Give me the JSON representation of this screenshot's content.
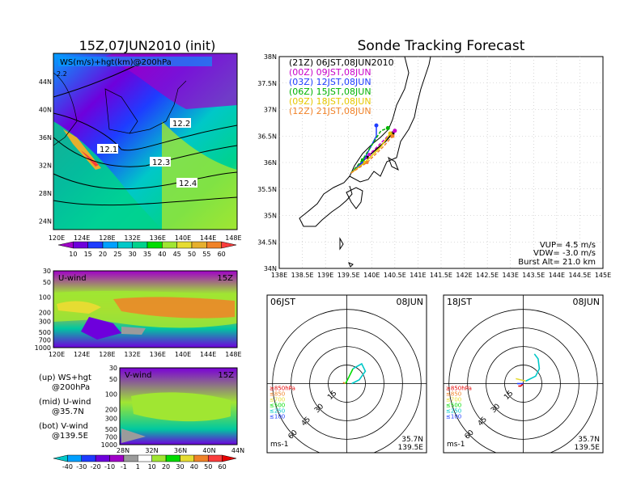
{
  "left": {
    "title": "15Z,07JUN2010 (init)",
    "map_label": "WS(m/s)+hgt(km)@200hPa",
    "map_corner_value": "2.2",
    "map_hgt_labels": [
      "12.1",
      "12.2",
      "12.3",
      "12.4"
    ],
    "map_lat_ticks": [
      "44N",
      "40N",
      "36N",
      "32N",
      "28N",
      "24N"
    ],
    "map_lon_ticks": [
      "120E",
      "124E",
      "128E",
      "132E",
      "136E",
      "140E",
      "144E",
      "148E"
    ],
    "ws_colorbar": [
      "10",
      "15",
      "20",
      "25",
      "30",
      "35",
      "40",
      "45",
      "50",
      "55",
      "60"
    ],
    "ws_colors": [
      "#a000c8",
      "#6e00dc",
      "#1e3cff",
      "#00a0ff",
      "#00c8c8",
      "#00d28c",
      "#00dc00",
      "#a0e632",
      "#e6dc32",
      "#e6af2d",
      "#f08228",
      "#fa3c3c"
    ],
    "u_panel_label": "U-wind",
    "u_panel_time": "15Z",
    "u_y_ticks": [
      "30",
      "50",
      "100",
      "200",
      "300",
      "500",
      "700",
      "1000"
    ],
    "u_x_ticks": [
      "120E",
      "124E",
      "128E",
      "132E",
      "136E",
      "140E",
      "144E",
      "148E"
    ],
    "v_panel_label": "V-wind",
    "v_panel_time": "15Z",
    "v_y_ticks": [
      "30",
      "50",
      "100",
      "200",
      "300",
      "500",
      "700",
      "1000"
    ],
    "v_x_ticks": [
      "28N",
      "32N",
      "36N",
      "40N",
      "44N"
    ],
    "legend_lines": [
      "(up) WS+hgt",
      "@200hPa",
      "(mid) U-wind",
      "@35.7N",
      "(bot) V-wind",
      "@139.5E"
    ],
    "uv_colorbar": [
      "-40",
      "-30",
      "-20",
      "-10",
      "-1",
      "1",
      "10",
      "20",
      "30",
      "40",
      "50",
      "60"
    ],
    "uv_colors": [
      "#00c8c8",
      "#00a0ff",
      "#1e3cff",
      "#6e00dc",
      "#a000c8",
      "#9b9b9b",
      "#ffffff",
      "#a0e632",
      "#00dc00",
      "#e6dc32",
      "#f08228",
      "#fa3c3c",
      "#e60000"
    ]
  },
  "right": {
    "title": "Sonde Tracking Forecast",
    "legend": [
      {
        "label": "(21Z) 06JST,08JUN2010",
        "color": "#000000"
      },
      {
        "label": "(00Z) 09JST,08JUN",
        "color": "#c800c8"
      },
      {
        "label": "(03Z) 12JST,08JUN",
        "color": "#1e3cff"
      },
      {
        "label": "(06Z) 15JST,08JUN",
        "color": "#00b400"
      },
      {
        "label": "(09Z) 18JST,08JUN",
        "color": "#e6c800"
      },
      {
        "label": "(12Z) 21JST,08JUN",
        "color": "#f08228"
      }
    ],
    "lat_ticks": [
      "38N",
      "37.5N",
      "37N",
      "36.5N",
      "36N",
      "35.5N",
      "35N",
      "34.5N",
      "34N"
    ],
    "lon_ticks": [
      "138E",
      "138.5E",
      "139E",
      "139.5E",
      "140E",
      "140.5E",
      "141E",
      "141.5E",
      "142E",
      "142.5E",
      "143E",
      "143.5E",
      "144E",
      "144.5E",
      "145E"
    ],
    "info": [
      "VUP= 4.5 m/s",
      "VDW= -3.0 m/s",
      "Burst Alt= 21.0 km"
    ]
  },
  "hodographs": [
    {
      "time": "06JST",
      "date": "08JUN",
      "ring_labels": [
        "15",
        "30",
        "45",
        "60"
      ],
      "levels": [
        "≥850hPa",
        "≤850",
        "≤700",
        "≤500",
        "≤250",
        "≤100"
      ],
      "level_colors": [
        "#e60000",
        "#f08228",
        "#e6dc32",
        "#00dc00",
        "#00c8c8",
        "#1e3cff"
      ],
      "unit": "ms-1",
      "lat": "35.7N",
      "lon": "139.5E"
    },
    {
      "time": "18JST",
      "date": "08JUN",
      "ring_labels": [
        "15",
        "30",
        "45",
        "60"
      ],
      "levels": [
        "≥850hPa",
        "≤850",
        "≤700",
        "≤500",
        "≤250",
        "≤100"
      ],
      "level_colors": [
        "#e60000",
        "#f08228",
        "#e6dc32",
        "#00dc00",
        "#00c8c8",
        "#1e3cff"
      ],
      "unit": "ms-1",
      "lat": "35.7N",
      "lon": "139.5E"
    }
  ],
  "chart_data": [
    {
      "type": "heatmap",
      "title": "15Z,07JUN2010 (init)",
      "label": "WS(m/s)+hgt(km)@200hPa",
      "xlim": [
        120,
        149
      ],
      "ylim": [
        22,
        48
      ],
      "contours": [
        12.1,
        12.2,
        12.3,
        12.4
      ],
      "colorbar": [
        10,
        15,
        20,
        25,
        30,
        35,
        40,
        45,
        50,
        55,
        60
      ]
    },
    {
      "type": "heatmap",
      "label": "U-wind",
      "time": "15Z",
      "xlim": [
        120,
        149
      ],
      "ylim": [
        1000,
        30
      ]
    },
    {
      "type": "heatmap",
      "label": "V-wind",
      "time": "15Z",
      "xlim": [
        28,
        44
      ],
      "ylim": [
        1000,
        30
      ]
    },
    {
      "type": "line",
      "title": "Sonde Tracking Forecast",
      "xlim": [
        138,
        145
      ],
      "ylim": [
        34,
        38
      ],
      "series": [
        {
          "name": "(21Z) 06JST,08JUN2010",
          "points": [
            [
              139.55,
              35.8
            ],
            [
              139.9,
              36.1
            ],
            [
              140.3,
              36.4
            ],
            [
              140.45,
              36.55
            ]
          ]
        },
        {
          "name": "(00Z) 09JST,08JUN",
          "points": [
            [
              139.55,
              35.8
            ],
            [
              139.95,
              36.15
            ],
            [
              140.35,
              36.5
            ],
            [
              140.5,
              36.6
            ]
          ]
        },
        {
          "name": "(03Z) 12JST,08JUN",
          "points": [
            [
              139.55,
              35.8
            ],
            [
              139.8,
              36.0
            ],
            [
              140.1,
              36.5
            ],
            [
              140.1,
              36.7
            ]
          ]
        },
        {
          "name": "(06Z) 15JST,08JUN",
          "points": [
            [
              139.55,
              35.8
            ],
            [
              139.8,
              36.05
            ],
            [
              140.2,
              36.6
            ],
            [
              140.35,
              36.65
            ]
          ]
        },
        {
          "name": "(09Z) 18JST,08JUN",
          "points": [
            [
              139.55,
              35.8
            ],
            [
              139.85,
              36.0
            ],
            [
              140.2,
              36.3
            ],
            [
              140.4,
              36.55
            ]
          ]
        },
        {
          "name": "(12Z) 21JST,08JUN",
          "points": [
            [
              139.55,
              35.8
            ],
            [
              139.9,
              36.0
            ],
            [
              140.25,
              36.3
            ],
            [
              140.45,
              36.5
            ]
          ]
        }
      ]
    },
    {
      "type": "line",
      "title": "06JST 08JUN",
      "rings": [
        15,
        30,
        45,
        60
      ],
      "series": [
        {
          "name": "≤850",
          "points": [
            [
              -3,
              1
            ],
            [
              -1,
              0
            ]
          ]
        },
        {
          "name": "≤500",
          "points": [
            [
              -1,
              0
            ],
            [
              2,
              6
            ],
            [
              5,
              12
            ]
          ]
        },
        {
          "name": "≤250",
          "points": [
            [
              5,
              12
            ],
            [
              12,
              16
            ],
            [
              15,
              10
            ],
            [
              10,
              3
            ],
            [
              4,
              0
            ]
          ]
        }
      ]
    },
    {
      "type": "line",
      "title": "18JST 08JUN",
      "rings": [
        15,
        30,
        45,
        60
      ],
      "series": [
        {
          "name": "≥850hPa",
          "points": [
            [
              -4,
              -2
            ],
            [
              -2,
              -2
            ],
            [
              0,
              0
            ]
          ]
        },
        {
          "name": "≤700",
          "points": [
            [
              -6,
              4
            ],
            [
              -2,
              3
            ],
            [
              2,
              2
            ]
          ]
        },
        {
          "name": "≤250",
          "points": [
            [
              2,
              2
            ],
            [
              10,
              6
            ],
            [
              13,
              12
            ],
            [
              12,
              20
            ],
            [
              9,
              24
            ]
          ]
        },
        {
          "name": "≤100",
          "points": [
            [
              -5,
              0
            ],
            [
              0,
              0
            ]
          ]
        }
      ]
    }
  ]
}
